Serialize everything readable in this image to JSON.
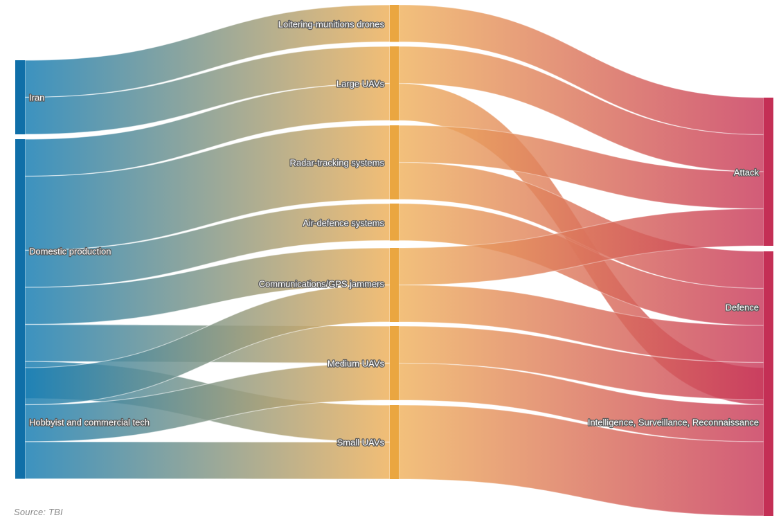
{
  "colors": {
    "source": "#1a7fb4",
    "middle": "#efb25e",
    "target": "#c8385a",
    "middle_bar": "#eaa640",
    "source_bar": "#0f6fa8",
    "target_bar": "#c42f55"
  },
  "nodes": {
    "sources": [
      "Iran",
      "Domestic production",
      "Hobbyist and commercial tech"
    ],
    "middles": [
      "Loitering-munitions drones",
      "Large UAVs",
      "Radar-tracking systems",
      "Air-defence systems",
      "Communications/GPS jammers",
      "Medium UAVs",
      "Small UAVs"
    ],
    "targets": [
      "Attack",
      "Defence",
      "Intelligence, Surveillance, Reconnaissance"
    ]
  },
  "flows_left": [
    {
      "from": "Iran",
      "to": "Loitering-munitions drones",
      "value": 1
    },
    {
      "from": "Iran",
      "to": "Large UAVs",
      "value": 1
    },
    {
      "from": "Domestic production",
      "to": "Large UAVs",
      "value": 1
    },
    {
      "from": "Domestic production",
      "to": "Radar-tracking systems",
      "value": 2
    },
    {
      "from": "Domestic production",
      "to": "Air-defence systems",
      "value": 1
    },
    {
      "from": "Domestic production",
      "to": "Communications/GPS jammers",
      "value": 1
    },
    {
      "from": "Domestic production",
      "to": "Medium UAVs",
      "value": 1
    },
    {
      "from": "Domestic production",
      "to": "Small UAVs",
      "value": 1
    },
    {
      "from": "Hobbyist and commercial tech",
      "to": "Communications/GPS jammers",
      "value": 1
    },
    {
      "from": "Hobbyist and commercial tech",
      "to": "Medium UAVs",
      "value": 1
    },
    {
      "from": "Hobbyist and commercial tech",
      "to": "Small UAVs",
      "value": 1
    }
  ],
  "flows_right": [
    {
      "from": "Loitering-munitions drones",
      "to": "Attack",
      "value": 1
    },
    {
      "from": "Large UAVs",
      "to": "Attack",
      "value": 1
    },
    {
      "from": "Large UAVs",
      "to": "Intelligence, Surveillance, Reconnaissance",
      "value": 1
    },
    {
      "from": "Radar-tracking systems",
      "to": "Attack",
      "value": 1
    },
    {
      "from": "Radar-tracking systems",
      "to": "Defence",
      "value": 1
    },
    {
      "from": "Air-defence systems",
      "to": "Defence",
      "value": 1
    },
    {
      "from": "Communications/GPS jammers",
      "to": "Attack",
      "value": 1
    },
    {
      "from": "Communications/GPS jammers",
      "to": "Defence",
      "value": 1
    },
    {
      "from": "Medium UAVs",
      "to": "Defence",
      "value": 1
    },
    {
      "from": "Medium UAVs",
      "to": "Intelligence, Surveillance, Reconnaissance",
      "value": 1
    },
    {
      "from": "Small UAVs",
      "to": "Intelligence, Surveillance, Reconnaissance",
      "value": 2
    }
  ],
  "source_note": "Source: TBI"
}
